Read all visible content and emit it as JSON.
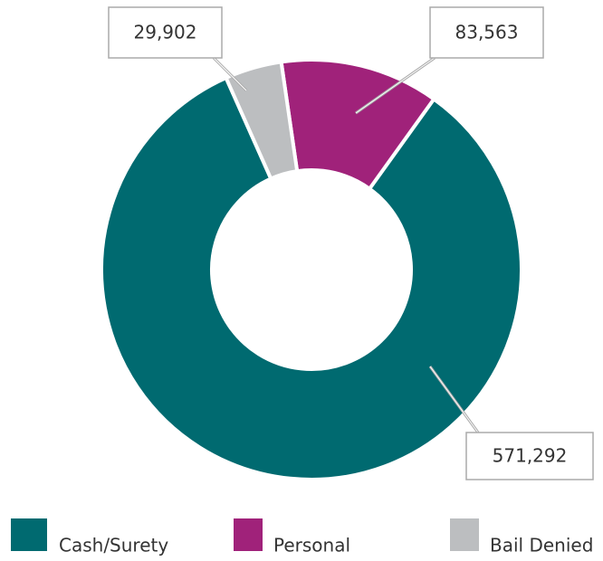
{
  "chart_data": {
    "type": "donut",
    "categories": [
      "Cash/Surety",
      "Personal",
      "Bail Denied"
    ],
    "values": [
      571292,
      83563,
      29902
    ],
    "value_labels": [
      "571,292",
      "83,563",
      "29,902"
    ],
    "colors": [
      "#006a70",
      "#a0227a",
      "#bcbec0"
    ],
    "legend": "bottom"
  }
}
